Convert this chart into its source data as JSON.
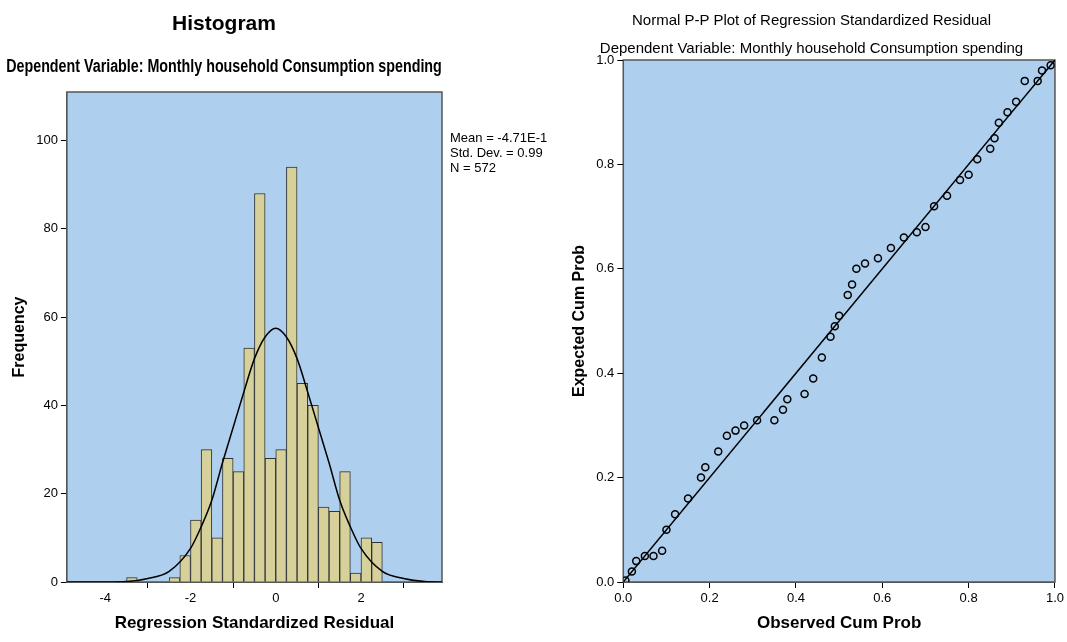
{
  "chart_data": [
    {
      "type": "histogram",
      "title": "Histogram",
      "subtitle": "Dependent Variable: Monthly household Consumption spending",
      "xlabel": "Regression Standardized Residual",
      "ylabel": "Frequency",
      "bins": [
        -3.5,
        -3.25,
        -3,
        -2.75,
        -2.5,
        -2.25,
        -2,
        -1.75,
        -1.5,
        -1.25,
        -1,
        -0.75,
        -0.5,
        -0.25,
        0,
        0.25,
        0.5,
        0.75,
        1,
        1.25,
        1.5,
        1.75,
        2,
        2.25,
        2.5
      ],
      "values": [
        1,
        0,
        0,
        0,
        1,
        6,
        14,
        30,
        10,
        28,
        25,
        53,
        88,
        28,
        30,
        94,
        45,
        40,
        17,
        16,
        25,
        2,
        10,
        9
      ],
      "color": "#d6d09b",
      "series": [
        {
          "type": "line",
          "color": "#000000",
          "x": [
            -4.9,
            -4,
            -3.5,
            -3,
            -2.5,
            -2,
            -1.75,
            -1.5,
            -1.25,
            -1,
            -0.75,
            -0.5,
            -0.25,
            0,
            0.25,
            0.5,
            0.75,
            1,
            1.25,
            1.5,
            1.75,
            2,
            2.5,
            3,
            3.5,
            3.9
          ],
          "values": [
            0,
            0,
            0.1,
            0.8,
            2.4,
            7.6,
            12.5,
            18.5,
            27,
            35,
            43,
            50.6,
            55.5,
            57.5,
            55.5,
            50.6,
            43,
            35,
            27,
            18.5,
            12.5,
            7.6,
            2.4,
            0.8,
            0.1,
            0
          ]
        }
      ],
      "xlim": [
        -4.9,
        3.9
      ],
      "xticks": [
        -4,
        -2,
        0,
        2
      ],
      "ylim": [
        0,
        111
      ],
      "yticks": [
        0,
        20,
        40,
        60,
        80,
        100
      ],
      "grid": false,
      "annotations": [
        "Mean = -4.71E-1",
        "Std. Dev. = 0.99",
        "N = 572"
      ]
    },
    {
      "type": "scatter",
      "title": "Normal P-P Plot of Regression Standardized Residual",
      "subtitle": "Dependent Variable: Monthly household Consumption spending",
      "xlabel": "Observed Cum Prob",
      "ylabel": "Expected Cum Prob",
      "series": [
        {
          "color": "#000000",
          "marker": "circle",
          "x": [
            0.005,
            0.02,
            0.03,
            0.05,
            0.07,
            0.09,
            0.1,
            0.12,
            0.15,
            0.18,
            0.19,
            0.22,
            0.24,
            0.26,
            0.28,
            0.31,
            0.35,
            0.37,
            0.38,
            0.42,
            0.44,
            0.46,
            0.48,
            0.49,
            0.5,
            0.52,
            0.53,
            0.54,
            0.56,
            0.59,
            0.62,
            0.65,
            0.68,
            0.7,
            0.72,
            0.75,
            0.78,
            0.8,
            0.82,
            0.85,
            0.86,
            0.87,
            0.89,
            0.91,
            0.93,
            0.96,
            0.97,
            0.99
          ],
          "values": [
            0.003,
            0.02,
            0.04,
            0.05,
            0.05,
            0.06,
            0.1,
            0.13,
            0.16,
            0.2,
            0.22,
            0.25,
            0.28,
            0.29,
            0.3,
            0.31,
            0.31,
            0.33,
            0.35,
            0.36,
            0.39,
            0.43,
            0.47,
            0.49,
            0.51,
            0.55,
            0.57,
            0.6,
            0.61,
            0.62,
            0.64,
            0.66,
            0.67,
            0.68,
            0.72,
            0.74,
            0.77,
            0.78,
            0.81,
            0.83,
            0.85,
            0.88,
            0.9,
            0.92,
            0.96,
            0.96,
            0.98,
            0.99
          ]
        },
        {
          "type": "line",
          "color": "#000000",
          "x": [
            0,
            1
          ],
          "values": [
            0,
            1
          ]
        }
      ],
      "xlim": [
        0,
        1
      ],
      "ylim": [
        0,
        1
      ],
      "xticks": [
        {
          "value": 0,
          "label": "0.0"
        },
        0.2,
        0.4,
        0.6,
        0.8,
        {
          "value": 1,
          "label": "1.0"
        }
      ],
      "yticks": [
        {
          "value": 0,
          "label": "0.0"
        },
        0.2,
        0.4,
        0.6,
        0.8,
        {
          "value": 1,
          "label": "1.0"
        }
      ],
      "grid": false
    }
  ]
}
